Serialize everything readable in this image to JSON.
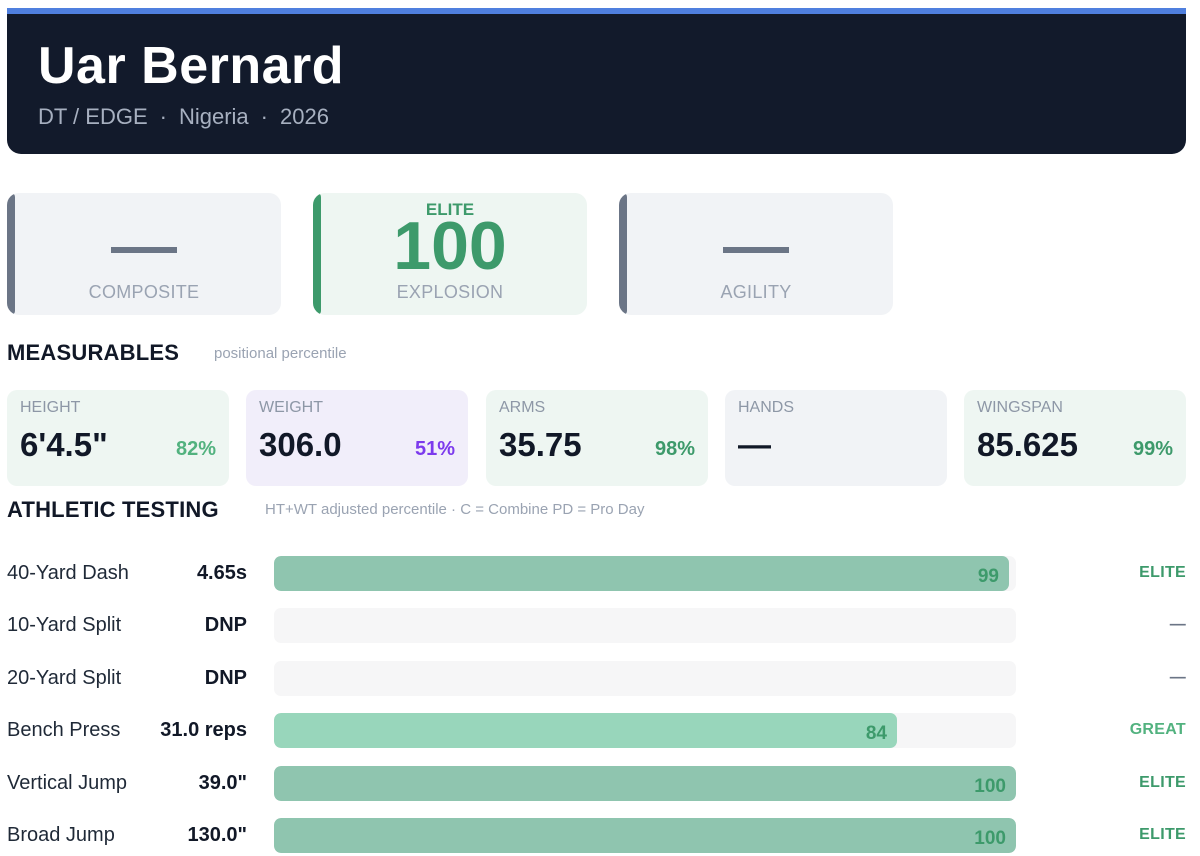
{
  "player": {
    "name": "Uar Bernard",
    "position": "DT / EDGE",
    "country": "Nigeria",
    "year": "2026",
    "separator": "·"
  },
  "scores": [
    {
      "label": "COMPOSITE",
      "tier": "",
      "value": "—",
      "accent": "#6b7586"
    },
    {
      "label": "EXPLOSION",
      "tier": "ELITE",
      "value": "100",
      "accent": "#3d9a6b"
    },
    {
      "label": "AGILITY",
      "tier": "",
      "value": "—",
      "accent": "#6b7586"
    }
  ],
  "measurables": {
    "title": "MEASURABLES",
    "note": "positional percentile",
    "items": [
      {
        "label": "HEIGHT",
        "value": "6'4.5\"",
        "percentile": "82%",
        "percentile_color": "#52b27f",
        "bg": "#eef6f2"
      },
      {
        "label": "WEIGHT",
        "value": "306.0",
        "percentile": "51%",
        "percentile_color": "#7c3aed",
        "bg": "#f1eefa"
      },
      {
        "label": "ARMS",
        "value": "35.75",
        "percentile": "98%",
        "percentile_color": "#3d9a6b",
        "bg": "#eef6f2"
      },
      {
        "label": "HANDS",
        "value": "—",
        "percentile": "",
        "percentile_color": "#3d9a6b",
        "bg": "#f1f3f6"
      },
      {
        "label": "WINGSPAN",
        "value": "85.625",
        "percentile": "99%",
        "percentile_color": "#3d9a6b",
        "bg": "#eef6f2"
      }
    ]
  },
  "athletic": {
    "title": "ATHLETIC TESTING",
    "note": "HT+WT adjusted percentile  ·  C = Combine  PD = Pro Day",
    "tests": [
      {
        "name": "40-Yard Dash",
        "result": "4.65s",
        "percentile": 99,
        "percentile_label": "99",
        "grade": "ELITE",
        "grade_color": "#3d9a6b",
        "fill_color": "#8fc5af"
      },
      {
        "name": "10-Yard Split",
        "result": "DNP",
        "percentile": 0,
        "percentile_label": "",
        "grade": "—",
        "grade_color": "#6b7586",
        "fill_color": "#8fc5af"
      },
      {
        "name": "20-Yard Split",
        "result": "DNP",
        "percentile": 0,
        "percentile_label": "",
        "grade": "—",
        "grade_color": "#6b7586",
        "fill_color": "#8fc5af"
      },
      {
        "name": "Bench Press",
        "result": "31.0 reps",
        "percentile": 84,
        "percentile_label": "84",
        "grade": "GREAT",
        "grade_color": "#52b27f",
        "fill_color": "#98d6bb"
      },
      {
        "name": "Vertical Jump",
        "result": "39.0\"",
        "percentile": 100,
        "percentile_label": "100",
        "grade": "ELITE",
        "grade_color": "#3d9a6b",
        "fill_color": "#8fc5af"
      },
      {
        "name": "Broad Jump",
        "result": "130.0\"",
        "percentile": 100,
        "percentile_label": "100",
        "grade": "ELITE",
        "grade_color": "#3d9a6b",
        "fill_color": "#8fc5af"
      }
    ]
  }
}
